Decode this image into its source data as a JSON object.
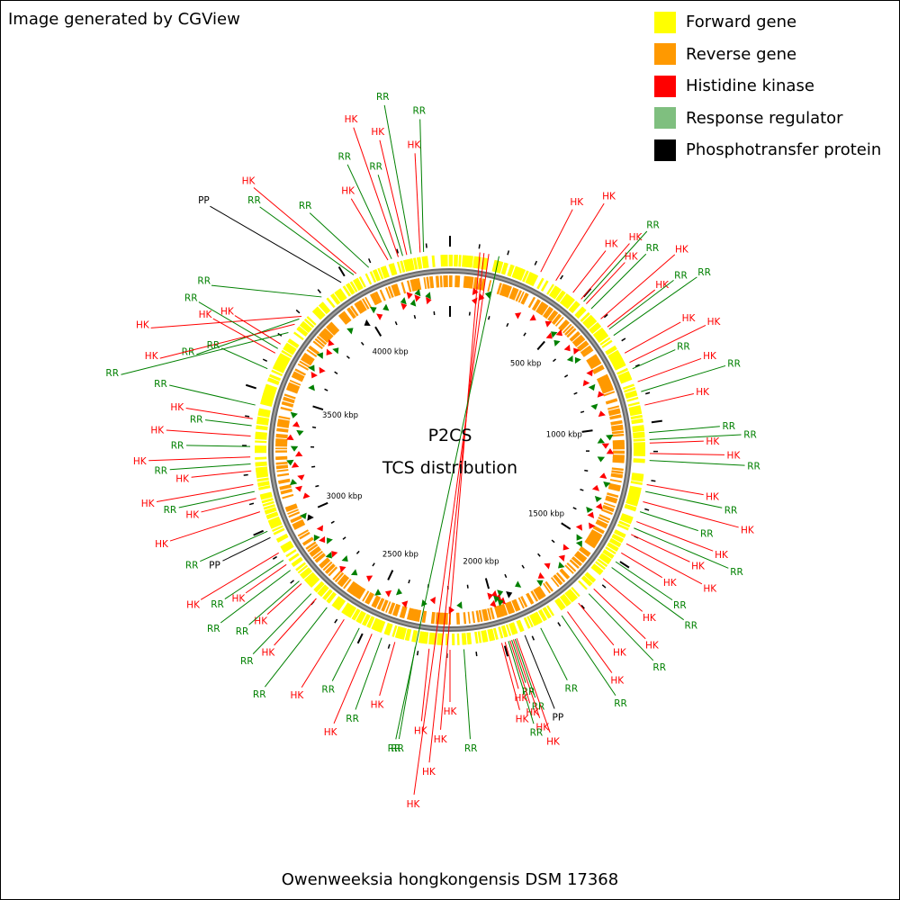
{
  "credit": "Image generated by CGView",
  "legend": [
    {
      "label": "Forward gene",
      "color": "#ffff00"
    },
    {
      "label": "Reverse gene",
      "color": "#ff9900"
    },
    {
      "label": "Histidine kinase",
      "color": "#ff0000"
    },
    {
      "label": "Response regulator",
      "color": "#7fbf7f"
    },
    {
      "label": "Phosphotransfer protein",
      "color": "#000000"
    }
  ],
  "center": {
    "line1": "P2CS",
    "line2": "TCS distribution"
  },
  "caption": "Owenweeksia hongkongensis DSM 17368",
  "colors": {
    "forward": "#ffff00",
    "reverse": "#ff9900",
    "backbone": "#808080",
    "hk_label": "#ff0000",
    "rr_label": "#008000",
    "pp_label": "#000000"
  },
  "genome": {
    "length_kbp": 4380,
    "major_tick_kbp": 500,
    "tick_labels": [
      "4000 kbp",
      "500 kbp",
      "1000 kbp",
      "1500 kbp",
      "2000 kbp",
      "2500 kbp",
      "3000 kbp",
      "3500 kbp"
    ],
    "tick_label_positions_kbp": [
      4000,
      500,
      1000,
      1500,
      2000,
      2500,
      3000,
      3500
    ]
  },
  "features": [
    {
      "t": "HK",
      "a": 341.9,
      "g": 1
    },
    {
      "t": "RR",
      "a": 343.0,
      "g": 1
    },
    {
      "t": "HK",
      "a": 345.0,
      "g": 1
    },
    {
      "t": "RR",
      "a": 346.3,
      "g": 1
    },
    {
      "t": "HK",
      "a": 347.5,
      "g": 1
    },
    {
      "t": "RR",
      "a": 348.8,
      "g": 1
    },
    {
      "t": "HK",
      "a": 351.4,
      "g": 1
    },
    {
      "t": "RR",
      "a": 352.4,
      "g": 1
    },
    {
      "t": "HK",
      "a": 8.6,
      "g": 1
    },
    {
      "t": "HK",
      "a": 9.8,
      "g": 1
    },
    {
      "t": "HK",
      "a": 11.2,
      "g": 1
    },
    {
      "t": "RR",
      "a": 14.2,
      "g": 1
    },
    {
      "t": "HK",
      "a": 332.0,
      "g": 1
    },
    {
      "t": "RR",
      "a": 336.0,
      "g": 1
    },
    {
      "t": "RR",
      "a": 331.2,
      "g": 1
    },
    {
      "t": "PP",
      "a": 327.0,
      "g": 1
    },
    {
      "t": "RR",
      "a": 320.0,
      "g": 1
    },
    {
      "t": "HK",
      "a": 312.0,
      "g": 1
    },
    {
      "t": "RR",
      "a": 311.0,
      "g": 1
    },
    {
      "t": "HK",
      "a": 309.0,
      "g": 1
    },
    {
      "t": "RR",
      "a": 306.0,
      "g": 1
    },
    {
      "t": "HK",
      "a": 27.0,
      "g": 2
    },
    {
      "t": "HK",
      "a": 32.0,
      "g": 2
    },
    {
      "t": "HK",
      "a": 38.0,
      "g": 2
    },
    {
      "t": "HK",
      "a": 41.0,
      "g": 2
    },
    {
      "t": "RR",
      "a": 42.0,
      "g": 2
    },
    {
      "t": "HK",
      "a": 43.0,
      "g": 2
    },
    {
      "t": "RR",
      "a": 45.0,
      "g": 2
    },
    {
      "t": "HK",
      "a": 49.0,
      "g": 2
    },
    {
      "t": "HK",
      "a": 52.0,
      "g": 2
    },
    {
      "t": "RR",
      "a": 52.8,
      "g": 2
    },
    {
      "t": "RR",
      "a": 55.0,
      "g": 2
    },
    {
      "t": "HK",
      "a": 61.0,
      "g": 2
    },
    {
      "t": "HK",
      "a": 64.0,
      "g": 2
    },
    {
      "t": "RR",
      "a": 66.0,
      "g": 2
    },
    {
      "t": "HK",
      "a": 70.0,
      "g": 2
    },
    {
      "t": "RR",
      "a": 73.0,
      "g": 2
    },
    {
      "t": "HK",
      "a": 77.0,
      "g": 2
    },
    {
      "t": "RR",
      "a": 85.0,
      "g": 2
    },
    {
      "t": "RR",
      "a": 87.0,
      "g": 2
    },
    {
      "t": "HK",
      "a": 88.0,
      "g": 2
    },
    {
      "t": "HK",
      "a": 91.0,
      "g": 2
    },
    {
      "t": "RR",
      "a": 93.0,
      "g": 2
    },
    {
      "t": "HK",
      "a": 100.0,
      "g": 2
    },
    {
      "t": "RR",
      "a": 102.0,
      "g": 2
    },
    {
      "t": "HK",
      "a": 105.0,
      "g": 2
    },
    {
      "t": "RR",
      "a": 108.0,
      "g": 2
    },
    {
      "t": "HK",
      "a": 111.0,
      "g": 2
    },
    {
      "t": "RR",
      "a": 113.0,
      "g": 2
    },
    {
      "t": "HK",
      "a": 115.0,
      "g": 2
    },
    {
      "t": "HK",
      "a": 118.0,
      "g": 2
    },
    {
      "t": "HK",
      "a": 121.0,
      "g": 2
    },
    {
      "t": "RR",
      "a": 124.0,
      "g": 2
    },
    {
      "t": "RR",
      "a": 126.0,
      "g": 2
    },
    {
      "t": "HK",
      "a": 130.0,
      "g": 2
    },
    {
      "t": "HK",
      "a": 134.0,
      "g": 2
    },
    {
      "t": "RR",
      "a": 136.0,
      "g": 2
    },
    {
      "t": "HK",
      "a": 140.0,
      "g": 2
    },
    {
      "t": "HK",
      "a": 144.0,
      "g": 2
    },
    {
      "t": "RR",
      "a": 146.0,
      "g": 2
    },
    {
      "t": "RR",
      "a": 153.0,
      "g": 2
    },
    {
      "t": "PP",
      "a": 158.0,
      "g": 2
    },
    {
      "t": "HK",
      "a": 160.5,
      "g": 2
    },
    {
      "t": "RR",
      "a": 161.0,
      "g": 2
    },
    {
      "t": "HK",
      "a": 161.5,
      "g": 2
    },
    {
      "t": "RR",
      "a": 162.0,
      "g": 2
    },
    {
      "t": "HK",
      "a": 162.5,
      "g": 2
    },
    {
      "t": "RR",
      "a": 163.0,
      "g": 2
    },
    {
      "t": "HK",
      "a": 164.0,
      "g": 2
    },
    {
      "t": "HK",
      "a": 165.0,
      "g": 2
    },
    {
      "t": "RR",
      "a": 176.0,
      "g": 2
    },
    {
      "t": "HK",
      "a": 180.0,
      "g": 2
    },
    {
      "t": "HK",
      "a": 186.0,
      "g": 2
    },
    {
      "t": "RR",
      "a": 190.0,
      "g": 2
    },
    {
      "t": "HK",
      "a": 196.0,
      "g": 2
    },
    {
      "t": "RR",
      "a": 200.0,
      "g": 2
    },
    {
      "t": "HK",
      "a": 203.0,
      "g": 2
    },
    {
      "t": "RR",
      "a": 207.0,
      "g": 2
    },
    {
      "t": "HK",
      "a": 212.0,
      "g": 2
    },
    {
      "t": "RR",
      "a": 218.0,
      "g": 2
    },
    {
      "t": "HK",
      "a": 222.0,
      "g": 2
    },
    {
      "t": "RR",
      "a": 224.0,
      "g": 2
    },
    {
      "t": "HK",
      "a": 228.0,
      "g": 2
    },
    {
      "t": "RR",
      "a": 229.0,
      "g": 2
    },
    {
      "t": "RR",
      "a": 233.0,
      "g": 2
    },
    {
      "t": "HK",
      "a": 235.0,
      "g": 2
    },
    {
      "t": "RR",
      "a": 236.5,
      "g": 2
    },
    {
      "t": "HK",
      "a": 239.0,
      "g": 2
    },
    {
      "t": "PP",
      "a": 244.0,
      "g": 2
    },
    {
      "t": "RR",
      "a": 246.0,
      "g": 2
    },
    {
      "t": "HK",
      "a": 252.0,
      "g": 2
    },
    {
      "t": "HK",
      "a": 256.0,
      "g": 2
    },
    {
      "t": "RR",
      "a": 258.0,
      "g": 2
    },
    {
      "t": "HK",
      "a": 260.0,
      "g": 2
    },
    {
      "t": "HK",
      "a": 264.0,
      "g": 2
    },
    {
      "t": "RR",
      "a": 266.0,
      "g": 2
    },
    {
      "t": "HK",
      "a": 268.0,
      "g": 2
    },
    {
      "t": "RR",
      "a": 271.0,
      "g": 2
    },
    {
      "t": "HK",
      "a": 274.0,
      "g": 2
    },
    {
      "t": "RR",
      "a": 277.0,
      "g": 2
    },
    {
      "t": "HK",
      "a": 279.0,
      "g": 2
    },
    {
      "t": "RR",
      "a": 283.0,
      "g": 2
    },
    {
      "t": "RR",
      "a": 294.0,
      "g": 2
    },
    {
      "t": "HK",
      "a": 299.0,
      "g": 2
    },
    {
      "t": "RR",
      "a": 300.5,
      "g": 2
    },
    {
      "t": "HK",
      "a": 302.0,
      "g": 2
    }
  ]
}
